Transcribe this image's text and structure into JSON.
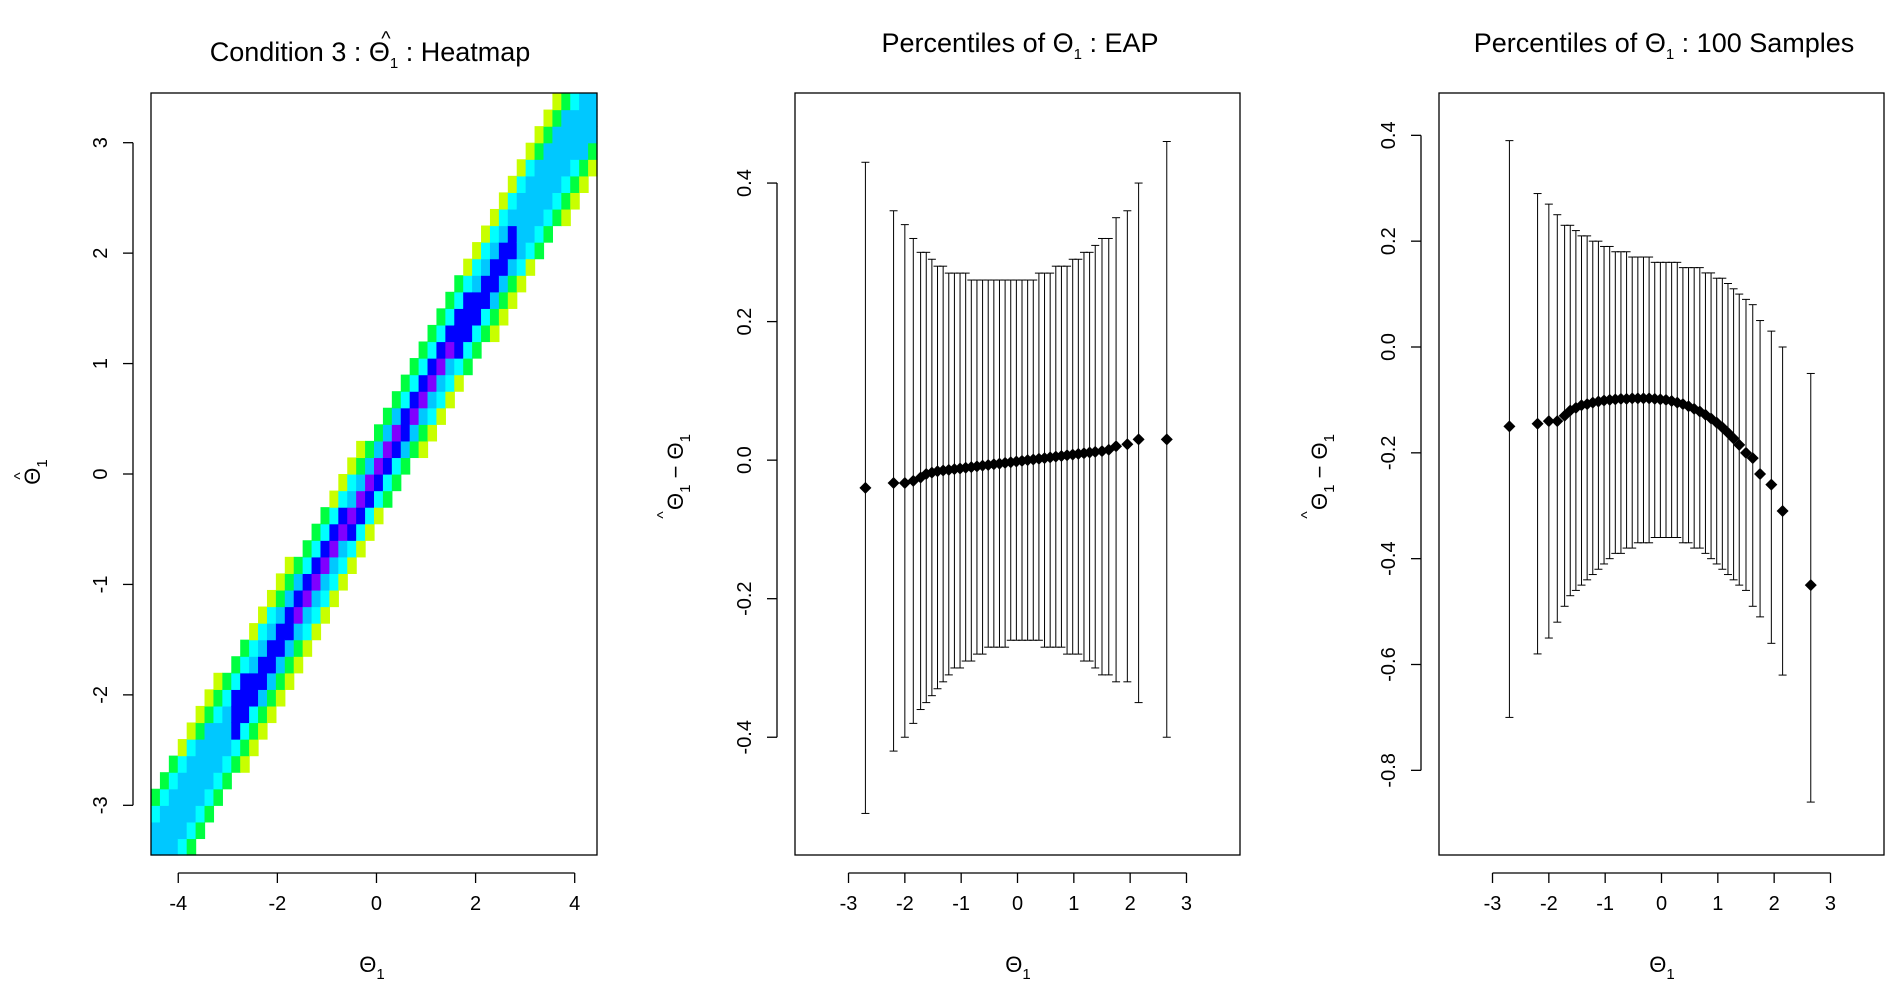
{
  "chart_data": [
    {
      "type": "heatmap",
      "title_prefix": "Condition 3 : ",
      "title_symbol": "Θ",
      "title_subscript": "1",
      "title_suffix": " : Heatmap",
      "xlabel_symbol": "Θ",
      "xlabel_subscript": "1",
      "ylabel_symbol": "Θ",
      "ylabel_subscript": "1",
      "xlim": [
        -4.55,
        4.45
      ],
      "ylim": [
        -3.45,
        3.45
      ],
      "xticks": [
        -4,
        -2,
        0,
        2,
        4
      ],
      "yticks": [
        -3,
        -2,
        -1,
        0,
        1,
        2,
        3
      ],
      "band": {
        "x_start": -4.55,
        "x_end": 4.45,
        "bin_width": 0.18,
        "y_bin_height": 0.15,
        "slope": 0.77,
        "inner_halfwidth": 0.14,
        "outer_halfwidth_center": 0.47,
        "outer_halfwidth_edge": 0.64
      },
      "colors": {
        "peak": "#8000ff",
        "core": "#0000ff",
        "mid": "#00c8ff",
        "cyan": "#00ffff",
        "edge": "#00ff40",
        "outer": "#c8ff00"
      }
    },
    {
      "type": "scatter",
      "subtype": "errorbar",
      "title_prefix": "Percentiles of ",
      "title_symbol": "Θ",
      "title_subscript": "1",
      "title_suffix": " : EAP",
      "xlabel_symbol": "Θ",
      "xlabel_subscript": "1",
      "ylabel": "Θ̂1 − Θ1",
      "xlim": [
        -3.95,
        3.95
      ],
      "ylim": [
        -0.57,
        0.53
      ],
      "xticks": [
        -3,
        -2,
        -1,
        0,
        1,
        2,
        3
      ],
      "yticks": [
        -0.4,
        -0.2,
        0.0,
        0.2,
        0.4
      ],
      "ytick_labels": [
        "-0.4",
        "-0.2",
        "0.0",
        "0.2",
        "0.4"
      ],
      "points": [
        {
          "x": -2.7,
          "y": -0.04,
          "lo": -0.51,
          "hi": 0.43
        },
        {
          "x": -2.2,
          "y": -0.033,
          "lo": -0.42,
          "hi": 0.36
        },
        {
          "x": -2.0,
          "y": -0.033,
          "lo": -0.4,
          "hi": 0.34
        },
        {
          "x": -1.85,
          "y": -0.03,
          "lo": -0.38,
          "hi": 0.32
        },
        {
          "x": -1.72,
          "y": -0.025,
          "lo": -0.36,
          "hi": 0.3
        },
        {
          "x": -1.62,
          "y": -0.02,
          "lo": -0.35,
          "hi": 0.3
        },
        {
          "x": -1.52,
          "y": -0.018,
          "lo": -0.34,
          "hi": 0.29
        },
        {
          "x": -1.42,
          "y": -0.016,
          "lo": -0.33,
          "hi": 0.28
        },
        {
          "x": -1.32,
          "y": -0.015,
          "lo": -0.32,
          "hi": 0.28
        },
        {
          "x": -1.22,
          "y": -0.014,
          "lo": -0.31,
          "hi": 0.27
        },
        {
          "x": -1.12,
          "y": -0.013,
          "lo": -0.3,
          "hi": 0.27
        },
        {
          "x": -1.02,
          "y": -0.012,
          "lo": -0.3,
          "hi": 0.27
        },
        {
          "x": -0.92,
          "y": -0.011,
          "lo": -0.29,
          "hi": 0.27
        },
        {
          "x": -0.82,
          "y": -0.01,
          "lo": -0.29,
          "hi": 0.26
        },
        {
          "x": -0.72,
          "y": -0.009,
          "lo": -0.28,
          "hi": 0.26
        },
        {
          "x": -0.62,
          "y": -0.008,
          "lo": -0.28,
          "hi": 0.26
        },
        {
          "x": -0.52,
          "y": -0.007,
          "lo": -0.27,
          "hi": 0.26
        },
        {
          "x": -0.42,
          "y": -0.006,
          "lo": -0.27,
          "hi": 0.26
        },
        {
          "x": -0.32,
          "y": -0.005,
          "lo": -0.27,
          "hi": 0.26
        },
        {
          "x": -0.22,
          "y": -0.004,
          "lo": -0.27,
          "hi": 0.26
        },
        {
          "x": -0.12,
          "y": -0.003,
          "lo": -0.26,
          "hi": 0.26
        },
        {
          "x": -0.02,
          "y": -0.002,
          "lo": -0.26,
          "hi": 0.26
        },
        {
          "x": 0.08,
          "y": -0.001,
          "lo": -0.26,
          "hi": 0.26
        },
        {
          "x": 0.18,
          "y": 0.0,
          "lo": -0.26,
          "hi": 0.26
        },
        {
          "x": 0.28,
          "y": 0.001,
          "lo": -0.26,
          "hi": 0.26
        },
        {
          "x": 0.38,
          "y": 0.002,
          "lo": -0.26,
          "hi": 0.27
        },
        {
          "x": 0.48,
          "y": 0.003,
          "lo": -0.27,
          "hi": 0.27
        },
        {
          "x": 0.58,
          "y": 0.004,
          "lo": -0.27,
          "hi": 0.27
        },
        {
          "x": 0.68,
          "y": 0.005,
          "lo": -0.27,
          "hi": 0.28
        },
        {
          "x": 0.78,
          "y": 0.006,
          "lo": -0.27,
          "hi": 0.28
        },
        {
          "x": 0.88,
          "y": 0.007,
          "lo": -0.28,
          "hi": 0.28
        },
        {
          "x": 0.98,
          "y": 0.008,
          "lo": -0.28,
          "hi": 0.29
        },
        {
          "x": 1.08,
          "y": 0.009,
          "lo": -0.28,
          "hi": 0.29
        },
        {
          "x": 1.18,
          "y": 0.01,
          "lo": -0.29,
          "hi": 0.3
        },
        {
          "x": 1.28,
          "y": 0.011,
          "lo": -0.29,
          "hi": 0.3
        },
        {
          "x": 1.38,
          "y": 0.012,
          "lo": -0.3,
          "hi": 0.31
        },
        {
          "x": 1.5,
          "y": 0.013,
          "lo": -0.31,
          "hi": 0.32
        },
        {
          "x": 1.62,
          "y": 0.015,
          "lo": -0.31,
          "hi": 0.32
        },
        {
          "x": 1.75,
          "y": 0.02,
          "lo": -0.32,
          "hi": 0.35
        },
        {
          "x": 1.95,
          "y": 0.023,
          "lo": -0.32,
          "hi": 0.36
        },
        {
          "x": 2.15,
          "y": 0.03,
          "lo": -0.35,
          "hi": 0.4
        },
        {
          "x": 2.65,
          "y": 0.03,
          "lo": -0.4,
          "hi": 0.46
        }
      ]
    },
    {
      "type": "scatter",
      "subtype": "errorbar",
      "title_prefix": "Percentiles of ",
      "title_symbol": "Θ",
      "title_subscript": "1",
      "title_suffix": " : 100 Samples",
      "xlabel_symbol": "Θ",
      "xlabel_subscript": "1",
      "ylabel": "Θ̂1 − Θ1",
      "xlim": [
        -3.95,
        3.95
      ],
      "ylim": [
        -0.96,
        0.48
      ],
      "xticks": [
        -3,
        -2,
        -1,
        0,
        1,
        2,
        3
      ],
      "yticks": [
        -0.8,
        -0.6,
        -0.4,
        -0.2,
        0.0,
        0.2,
        0.4
      ],
      "ytick_labels": [
        "-0.8",
        "-0.6",
        "-0.4",
        "-0.2",
        "0.0",
        "0.2",
        "0.4"
      ],
      "points": [
        {
          "x": -2.7,
          "y": -0.15,
          "lo": -0.7,
          "hi": 0.39
        },
        {
          "x": -2.2,
          "y": -0.145,
          "lo": -0.58,
          "hi": 0.29
        },
        {
          "x": -2.0,
          "y": -0.14,
          "lo": -0.55,
          "hi": 0.27
        },
        {
          "x": -1.85,
          "y": -0.14,
          "lo": -0.52,
          "hi": 0.25
        },
        {
          "x": -1.72,
          "y": -0.13,
          "lo": -0.49,
          "hi": 0.23
        },
        {
          "x": -1.62,
          "y": -0.12,
          "lo": -0.47,
          "hi": 0.23
        },
        {
          "x": -1.52,
          "y": -0.115,
          "lo": -0.46,
          "hi": 0.22
        },
        {
          "x": -1.42,
          "y": -0.11,
          "lo": -0.45,
          "hi": 0.21
        },
        {
          "x": -1.32,
          "y": -0.108,
          "lo": -0.44,
          "hi": 0.21
        },
        {
          "x": -1.22,
          "y": -0.105,
          "lo": -0.43,
          "hi": 0.2
        },
        {
          "x": -1.12,
          "y": -0.103,
          "lo": -0.42,
          "hi": 0.2
        },
        {
          "x": -1.02,
          "y": -0.101,
          "lo": -0.41,
          "hi": 0.19
        },
        {
          "x": -0.92,
          "y": -0.1,
          "lo": -0.4,
          "hi": 0.19
        },
        {
          "x": -0.82,
          "y": -0.099,
          "lo": -0.39,
          "hi": 0.18
        },
        {
          "x": -0.72,
          "y": -0.098,
          "lo": -0.39,
          "hi": 0.18
        },
        {
          "x": -0.62,
          "y": -0.098,
          "lo": -0.38,
          "hi": 0.18
        },
        {
          "x": -0.52,
          "y": -0.097,
          "lo": -0.38,
          "hi": 0.17
        },
        {
          "x": -0.42,
          "y": -0.097,
          "lo": -0.37,
          "hi": 0.17
        },
        {
          "x": -0.32,
          "y": -0.097,
          "lo": -0.37,
          "hi": 0.17
        },
        {
          "x": -0.22,
          "y": -0.097,
          "lo": -0.37,
          "hi": 0.17
        },
        {
          "x": -0.12,
          "y": -0.098,
          "lo": -0.36,
          "hi": 0.16
        },
        {
          "x": -0.02,
          "y": -0.099,
          "lo": -0.36,
          "hi": 0.16
        },
        {
          "x": 0.08,
          "y": -0.1,
          "lo": -0.36,
          "hi": 0.16
        },
        {
          "x": 0.18,
          "y": -0.102,
          "lo": -0.36,
          "hi": 0.16
        },
        {
          "x": 0.28,
          "y": -0.105,
          "lo": -0.36,
          "hi": 0.16
        },
        {
          "x": 0.38,
          "y": -0.108,
          "lo": -0.37,
          "hi": 0.15
        },
        {
          "x": 0.48,
          "y": -0.112,
          "lo": -0.37,
          "hi": 0.15
        },
        {
          "x": 0.58,
          "y": -0.117,
          "lo": -0.38,
          "hi": 0.15
        },
        {
          "x": 0.68,
          "y": -0.122,
          "lo": -0.38,
          "hi": 0.15
        },
        {
          "x": 0.78,
          "y": -0.128,
          "lo": -0.39,
          "hi": 0.14
        },
        {
          "x": 0.88,
          "y": -0.135,
          "lo": -0.4,
          "hi": 0.14
        },
        {
          "x": 0.98,
          "y": -0.143,
          "lo": -0.41,
          "hi": 0.13
        },
        {
          "x": 1.08,
          "y": -0.152,
          "lo": -0.42,
          "hi": 0.13
        },
        {
          "x": 1.18,
          "y": -0.162,
          "lo": -0.43,
          "hi": 0.12
        },
        {
          "x": 1.28,
          "y": -0.173,
          "lo": -0.44,
          "hi": 0.11
        },
        {
          "x": 1.38,
          "y": -0.185,
          "lo": -0.45,
          "hi": 0.1
        },
        {
          "x": 1.5,
          "y": -0.2,
          "lo": -0.46,
          "hi": 0.09
        },
        {
          "x": 1.62,
          "y": -0.21,
          "lo": -0.49,
          "hi": 0.08
        },
        {
          "x": 1.75,
          "y": -0.24,
          "lo": -0.51,
          "hi": 0.05
        },
        {
          "x": 1.95,
          "y": -0.26,
          "lo": -0.56,
          "hi": 0.03
        },
        {
          "x": 2.15,
          "y": -0.31,
          "lo": -0.62,
          "hi": 0.0
        },
        {
          "x": 2.65,
          "y": -0.45,
          "lo": -0.86,
          "hi": -0.05
        }
      ]
    }
  ]
}
